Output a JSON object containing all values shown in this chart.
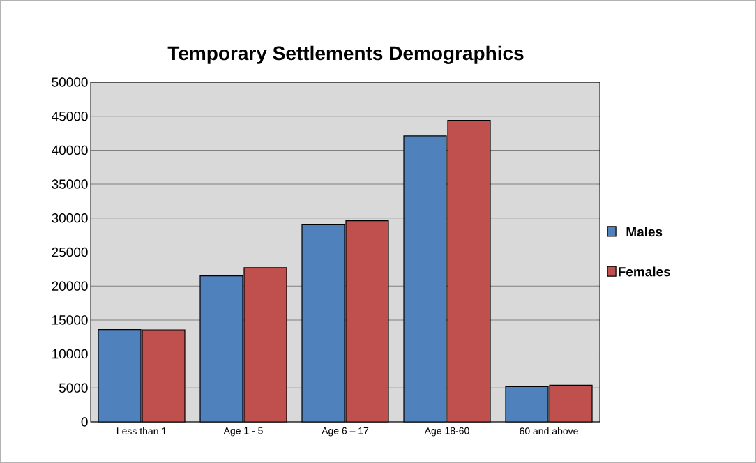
{
  "chart_data": {
    "type": "bar",
    "title": "Temporary Settlements Demographics",
    "categories": [
      "Less than 1",
      "Age 1 - 5",
      "Age 6 – 17",
      "Age 18-60",
      "60 and above"
    ],
    "series": [
      {
        "name": "Males",
        "color": "#4f81bd",
        "values": [
          13600,
          21500,
          29100,
          42100,
          5200
        ]
      },
      {
        "name": "Females",
        "color": "#c0504d",
        "values": [
          13550,
          22700,
          29600,
          44400,
          5400
        ]
      }
    ],
    "ylim": [
      0,
      50000
    ],
    "yticks": [
      0,
      5000,
      10000,
      15000,
      20000,
      25000,
      30000,
      35000,
      40000,
      45000,
      50000
    ],
    "grid": "y",
    "legend": "right"
  }
}
